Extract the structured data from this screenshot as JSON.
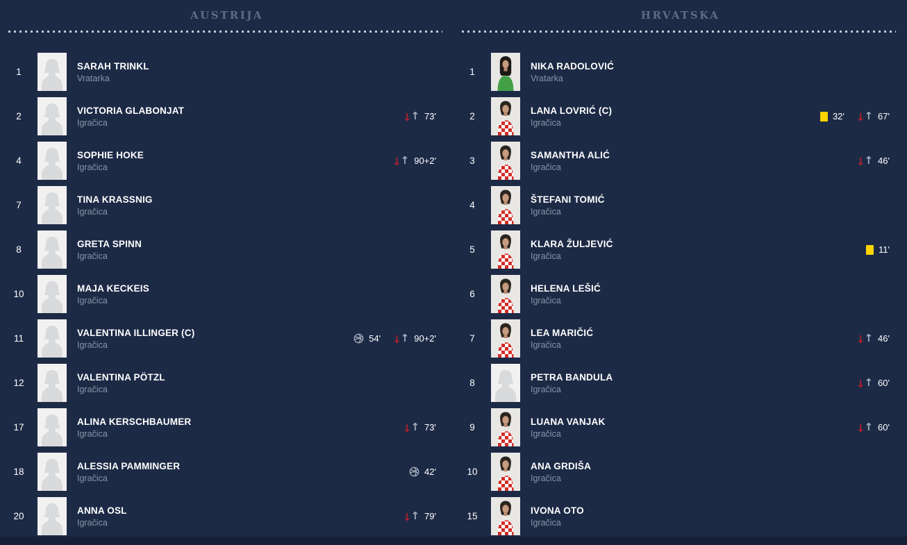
{
  "teams": [
    {
      "name": "AUSTRIJA",
      "players": [
        {
          "number": "1",
          "name": "SARAH TRINKL",
          "role": "Vratarka",
          "photo": "placeholder",
          "events": []
        },
        {
          "number": "2",
          "name": "VICTORIA GLABONJAT",
          "role": "Igračica",
          "photo": "placeholder",
          "events": [
            {
              "type": "sub",
              "time": "73'"
            }
          ]
        },
        {
          "number": "4",
          "name": "SOPHIE HOKE",
          "role": "Igračica",
          "photo": "placeholder",
          "events": [
            {
              "type": "sub",
              "time": "90+2'"
            }
          ]
        },
        {
          "number": "7",
          "name": "TINA KRASSNIG",
          "role": "Igračica",
          "photo": "placeholder",
          "events": []
        },
        {
          "number": "8",
          "name": "GRETA SPINN",
          "role": "Igračica",
          "photo": "placeholder",
          "events": []
        },
        {
          "number": "10",
          "name": "MAJA KECKEIS",
          "role": "Igračica",
          "photo": "placeholder",
          "events": []
        },
        {
          "number": "11",
          "name": "VALENTINA ILLINGER (C)",
          "role": "Igračica",
          "photo": "placeholder",
          "events": [
            {
              "type": "goal",
              "time": "54'"
            },
            {
              "type": "sub",
              "time": "90+2'"
            }
          ]
        },
        {
          "number": "12",
          "name": "VALENTINA PÖTZL",
          "role": "Igračica",
          "photo": "placeholder",
          "events": []
        },
        {
          "number": "17",
          "name": "ALINA KERSCHBAUMER",
          "role": "Igračica",
          "photo": "placeholder",
          "events": [
            {
              "type": "sub",
              "time": "73'"
            }
          ]
        },
        {
          "number": "18",
          "name": "ALESSIA PAMMINGER",
          "role": "Igračica",
          "photo": "placeholder",
          "events": [
            {
              "type": "goal",
              "time": "42'"
            }
          ]
        },
        {
          "number": "20",
          "name": "ANNA OSL",
          "role": "Igračica",
          "photo": "placeholder",
          "events": [
            {
              "type": "sub",
              "time": "79'"
            }
          ]
        }
      ]
    },
    {
      "name": "HRVATSKA",
      "players": [
        {
          "number": "1",
          "name": "NIKA RADOLOVIĆ",
          "role": "Vratarka",
          "photo": "gk",
          "events": []
        },
        {
          "number": "2",
          "name": "LANA LOVRIĆ (C)",
          "role": "Igračica",
          "photo": "outfield",
          "events": [
            {
              "type": "yellow",
              "time": "32'"
            },
            {
              "type": "sub",
              "time": "67'"
            }
          ]
        },
        {
          "number": "3",
          "name": "SAMANTHA ALIĆ",
          "role": "Igračica",
          "photo": "outfield",
          "events": [
            {
              "type": "sub",
              "time": "46'"
            }
          ]
        },
        {
          "number": "4",
          "name": "ŠTEFANI TOMIĆ",
          "role": "Igračica",
          "photo": "outfield",
          "events": []
        },
        {
          "number": "5",
          "name": "KLARA ŽULJEVIĆ",
          "role": "Igračica",
          "photo": "outfield",
          "events": [
            {
              "type": "yellow",
              "time": "11'"
            }
          ]
        },
        {
          "number": "6",
          "name": "HELENA LEŠIĆ",
          "role": "Igračica",
          "photo": "outfield",
          "events": []
        },
        {
          "number": "7",
          "name": "LEA MARIČIĆ",
          "role": "Igračica",
          "photo": "outfield",
          "events": [
            {
              "type": "sub",
              "time": "46'"
            }
          ]
        },
        {
          "number": "8",
          "name": "PETRA BANDULA",
          "role": "Igračica",
          "photo": "placeholder",
          "events": [
            {
              "type": "sub",
              "time": "60'"
            }
          ]
        },
        {
          "number": "9",
          "name": "LUANA VANJAK",
          "role": "Igračica",
          "photo": "outfield",
          "events": [
            {
              "type": "sub",
              "time": "60'"
            }
          ]
        },
        {
          "number": "10",
          "name": "ANA GRDIŠA",
          "role": "Igračica",
          "photo": "outfield",
          "events": []
        },
        {
          "number": "15",
          "name": "IVONA OTO",
          "role": "Igračica",
          "photo": "outfield",
          "events": []
        }
      ]
    }
  ],
  "icons": {
    "sub_off_glyph": "↓",
    "sub_on_glyph": "↑",
    "goal": "football-icon",
    "yellow_card": "yellow-card-icon"
  },
  "colors": {
    "background": "#1d2a46",
    "bottom_strip": "#162138",
    "team_name_text": "#5c6d88",
    "player_name_text": "#ffffff",
    "role_text": "#8b93a6",
    "dotted_line": "#c7ccd5",
    "yellow_card": "#ffd400",
    "sub_off_red": "#b3202b",
    "icon_gray": "#a6adbb"
  }
}
